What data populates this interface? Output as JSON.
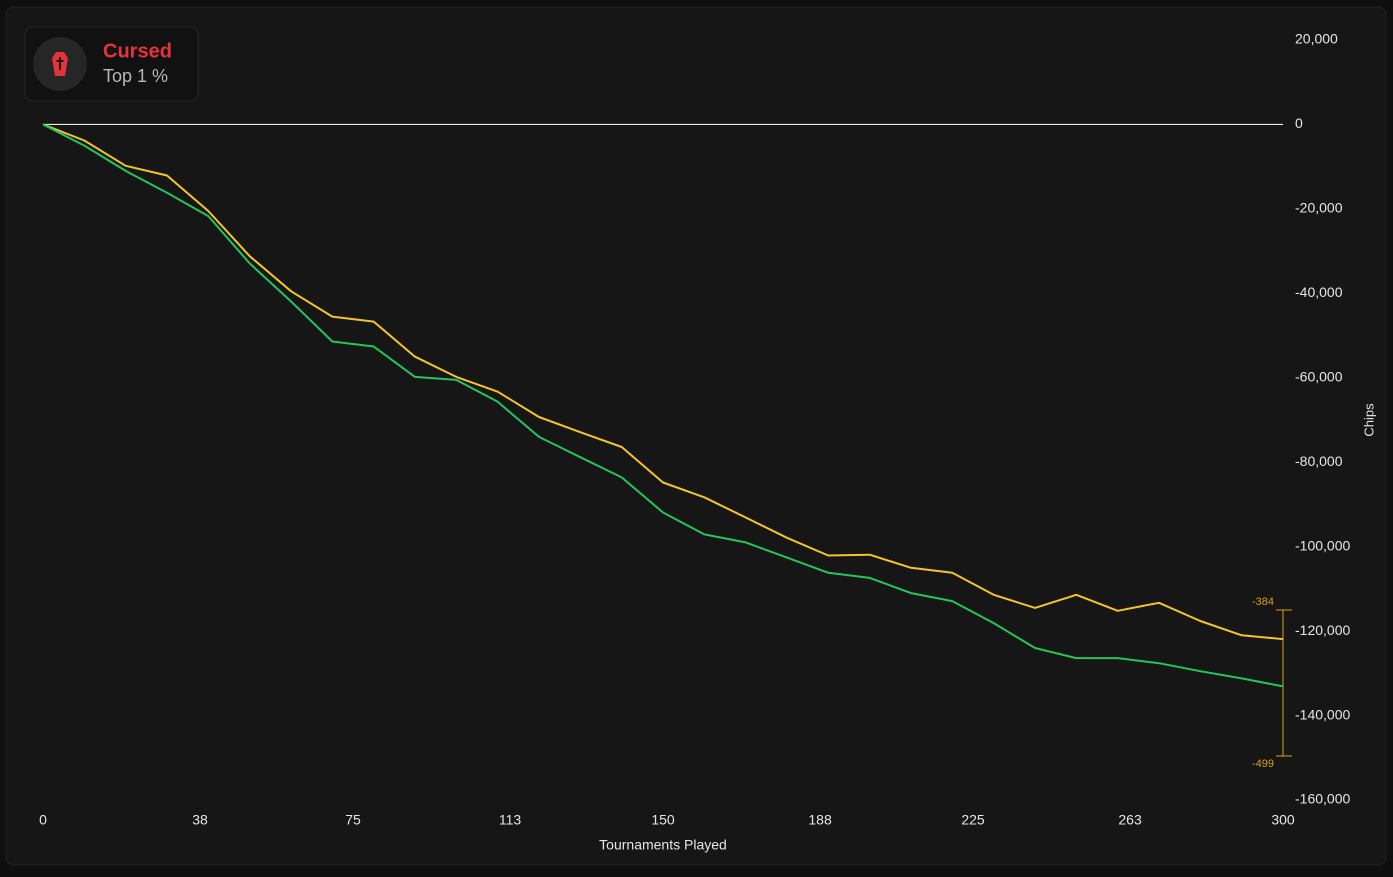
{
  "badge": {
    "title": "Cursed",
    "subtitle": "Top 1 %"
  },
  "chart_data": {
    "type": "line",
    "xlabel": "Tournaments Played",
    "ylabel": "Chips",
    "x": [
      0,
      10,
      20,
      30,
      40,
      50,
      60,
      70,
      80,
      90,
      100,
      110,
      120,
      130,
      140,
      150,
      160,
      170,
      180,
      190,
      200,
      210,
      220,
      230,
      240,
      250,
      260,
      270,
      280,
      290,
      300
    ],
    "series": [
      {
        "color": "#f5c527",
        "values": [
          0,
          -3800,
          -9800,
          -12100,
          -20500,
          -31200,
          -39500,
          -45500,
          -46700,
          -55000,
          -59800,
          -63300,
          -69300,
          -72900,
          -76400,
          -84800,
          -88300,
          -93100,
          -97900,
          -102100,
          -101900,
          -105000,
          -106200,
          -111400,
          -114500,
          -111400,
          -115200,
          -113300,
          -117600,
          -121000,
          -121900
        ]
      },
      {
        "color": "#22c55e",
        "values": [
          0,
          -5000,
          -11000,
          -16200,
          -21700,
          -32900,
          -41900,
          -51400,
          -52600,
          -59800,
          -60500,
          -65700,
          -74000,
          -78800,
          -83600,
          -91900,
          -97100,
          -99000,
          -102600,
          -106200,
          -107400,
          -111000,
          -112900,
          -118100,
          -124000,
          -126400,
          -126400,
          -127600,
          -129500,
          -131200,
          -133100
        ]
      }
    ],
    "xlim": [
      0,
      300
    ],
    "xticks": [
      0,
      38,
      75,
      113,
      150,
      188,
      225,
      263,
      300
    ],
    "ylim": [
      -160000,
      20000
    ],
    "yticks": [
      {
        "value": 20000,
        "label": "20,000"
      },
      0,
      {
        "value": -20000,
        "label": "-20,000"
      },
      {
        "value": -40000,
        "label": "-40,000"
      },
      {
        "value": -60000,
        "label": "-60,000"
      },
      {
        "value": -80000,
        "label": "-80,000"
      },
      {
        "value": -100000,
        "label": "-100,000"
      },
      {
        "value": -120000,
        "label": "-120,000"
      },
      {
        "value": -140000,
        "label": "-140,000"
      },
      {
        "value": -160000,
        "label": "-160,000"
      }
    ],
    "annotations": [
      "-384",
      "-499"
    ]
  }
}
